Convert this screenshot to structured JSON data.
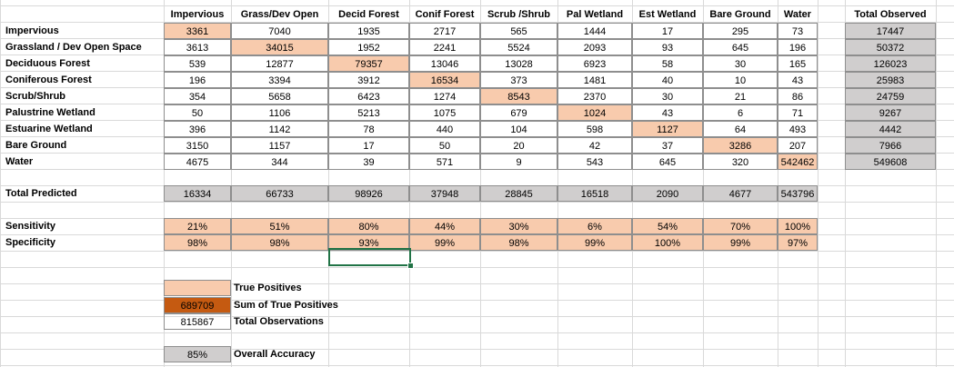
{
  "columns": [
    "Impervious",
    "Grass/Dev Open",
    "Decid Forest",
    "Conif Forest",
    "Scrub /Shrub",
    "Pal Wetland",
    "Est Wetland",
    "Bare Ground",
    "Water"
  ],
  "total_observed_label": "Total Observed",
  "rows": [
    {
      "label": "Impervious",
      "values": [
        "3361",
        "7040",
        "1935",
        "2717",
        "565",
        "1444",
        "17",
        "295",
        "73"
      ],
      "total": "17447"
    },
    {
      "label": "Grassland / Dev Open Space",
      "values": [
        "3613",
        "34015",
        "1952",
        "2241",
        "5524",
        "2093",
        "93",
        "645",
        "196"
      ],
      "total": "50372"
    },
    {
      "label": "Deciduous Forest",
      "values": [
        "539",
        "12877",
        "79357",
        "13046",
        "13028",
        "6923",
        "58",
        "30",
        "165"
      ],
      "total": "126023"
    },
    {
      "label": "Coniferous Forest",
      "values": [
        "196",
        "3394",
        "3912",
        "16534",
        "373",
        "1481",
        "40",
        "10",
        "43"
      ],
      "total": "25983"
    },
    {
      "label": "Scrub/Shrub",
      "values": [
        "354",
        "5658",
        "6423",
        "1274",
        "8543",
        "2370",
        "30",
        "21",
        "86"
      ],
      "total": "24759"
    },
    {
      "label": "Palustrine Wetland",
      "values": [
        "50",
        "1106",
        "5213",
        "1075",
        "679",
        "1024",
        "43",
        "6",
        "71"
      ],
      "total": "9267"
    },
    {
      "label": "Estuarine Wetland",
      "values": [
        "396",
        "1142",
        "78",
        "440",
        "104",
        "598",
        "1127",
        "64",
        "493"
      ],
      "total": "4442"
    },
    {
      "label": "Bare Ground",
      "values": [
        "3150",
        "1157",
        "17",
        "50",
        "20",
        "42",
        "37",
        "3286",
        "207"
      ],
      "total": "7966"
    },
    {
      "label": "Water",
      "values": [
        "4675",
        "344",
        "39",
        "571",
        "9",
        "543",
        "645",
        "320",
        "542462"
      ],
      "total": "549608"
    }
  ],
  "total_predicted": {
    "label": "Total Predicted",
    "values": [
      "16334",
      "66733",
      "98926",
      "37948",
      "28845",
      "16518",
      "2090",
      "4677",
      "543796"
    ]
  },
  "sensitivity": {
    "label": "Sensitivity",
    "values": [
      "21%",
      "51%",
      "80%",
      "44%",
      "30%",
      "6%",
      "54%",
      "70%",
      "100%"
    ]
  },
  "specificity": {
    "label": "Specificity",
    "values": [
      "98%",
      "98%",
      "93%",
      "99%",
      "98%",
      "99%",
      "100%",
      "99%",
      "97%"
    ]
  },
  "legend": {
    "true_positives_label": "True Positives",
    "sum_true_positives_value": "689709",
    "sum_true_positives_label": "Sum of True Positives",
    "total_observations_value": "815867",
    "total_observations_label": "Total Observations",
    "overall_accuracy_value": "85%",
    "overall_accuracy_label": "Overall Accuracy"
  },
  "colors": {
    "true_positive": "#f8cbad",
    "total": "#d0cece",
    "sum_highlight": "#c55a11",
    "selection": "#217346"
  }
}
